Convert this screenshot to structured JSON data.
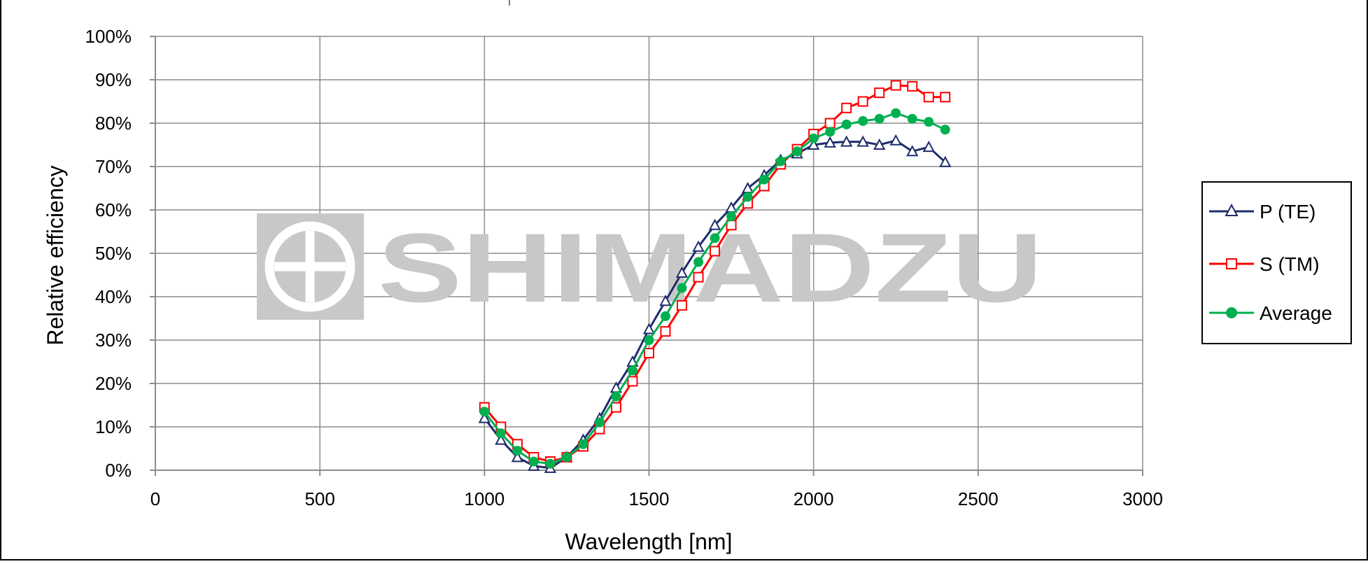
{
  "chart_data": {
    "type": "line",
    "xlabel": "Wavelength [nm]",
    "ylabel": "Relative efficiency",
    "xlim": [
      0,
      3000
    ],
    "ylim": [
      0,
      100
    ],
    "x_ticks": [
      0,
      500,
      1000,
      1500,
      2000,
      2500,
      3000
    ],
    "y_ticks": [
      0,
      10,
      20,
      30,
      40,
      50,
      60,
      70,
      80,
      90,
      100
    ],
    "x_tick_labels": [
      "0",
      "500",
      "1000",
      "1500",
      "2000",
      "2500",
      "3000"
    ],
    "y_tick_labels": [
      "0%",
      "10%",
      "20%",
      "30%",
      "40%",
      "50%",
      "60%",
      "70%",
      "80%",
      "90%",
      "100%"
    ],
    "grid": true,
    "legend_position": "right",
    "x": [
      1000,
      1050,
      1100,
      1150,
      1200,
      1250,
      1300,
      1350,
      1400,
      1450,
      1500,
      1550,
      1600,
      1650,
      1700,
      1750,
      1800,
      1850,
      1900,
      1950,
      2000,
      2050,
      2100,
      2150,
      2200,
      2250,
      2300,
      2350,
      2400
    ],
    "series": [
      {
        "name": "P (TE)",
        "color": "#1f2d6b",
        "marker": "triangle",
        "values": [
          12,
          7,
          3,
          1,
          0.5,
          3,
          7,
          12,
          19,
          25,
          32.5,
          39,
          45.5,
          51.5,
          56.5,
          60.5,
          65,
          68,
          71.5,
          73,
          75,
          75.5,
          75.7,
          75.7,
          75,
          76,
          73.5,
          74.5,
          71
        ]
      },
      {
        "name": "S (TM)",
        "color": "#ff0000",
        "marker": "square",
        "values": [
          14.5,
          10,
          6,
          3,
          2,
          3,
          5.5,
          9.5,
          14.5,
          20.5,
          27,
          32,
          38,
          44.5,
          50.5,
          56.5,
          61.5,
          65.5,
          70.5,
          74,
          77.5,
          80,
          83.5,
          85,
          87,
          88.7,
          88.5,
          86,
          86
        ]
      },
      {
        "name": "Average",
        "color": "#00b050",
        "marker": "circle",
        "values": [
          13.5,
          8.5,
          4.5,
          2,
          1.5,
          3,
          6,
          11,
          17,
          23,
          30,
          35.5,
          42,
          48,
          53.5,
          58.5,
          63,
          67,
          71.2,
          73.5,
          76.5,
          78,
          79.7,
          80.5,
          81,
          82.3,
          81,
          80.3,
          78.5
        ]
      }
    ]
  },
  "watermark": {
    "text": "SHIMADZU"
  }
}
